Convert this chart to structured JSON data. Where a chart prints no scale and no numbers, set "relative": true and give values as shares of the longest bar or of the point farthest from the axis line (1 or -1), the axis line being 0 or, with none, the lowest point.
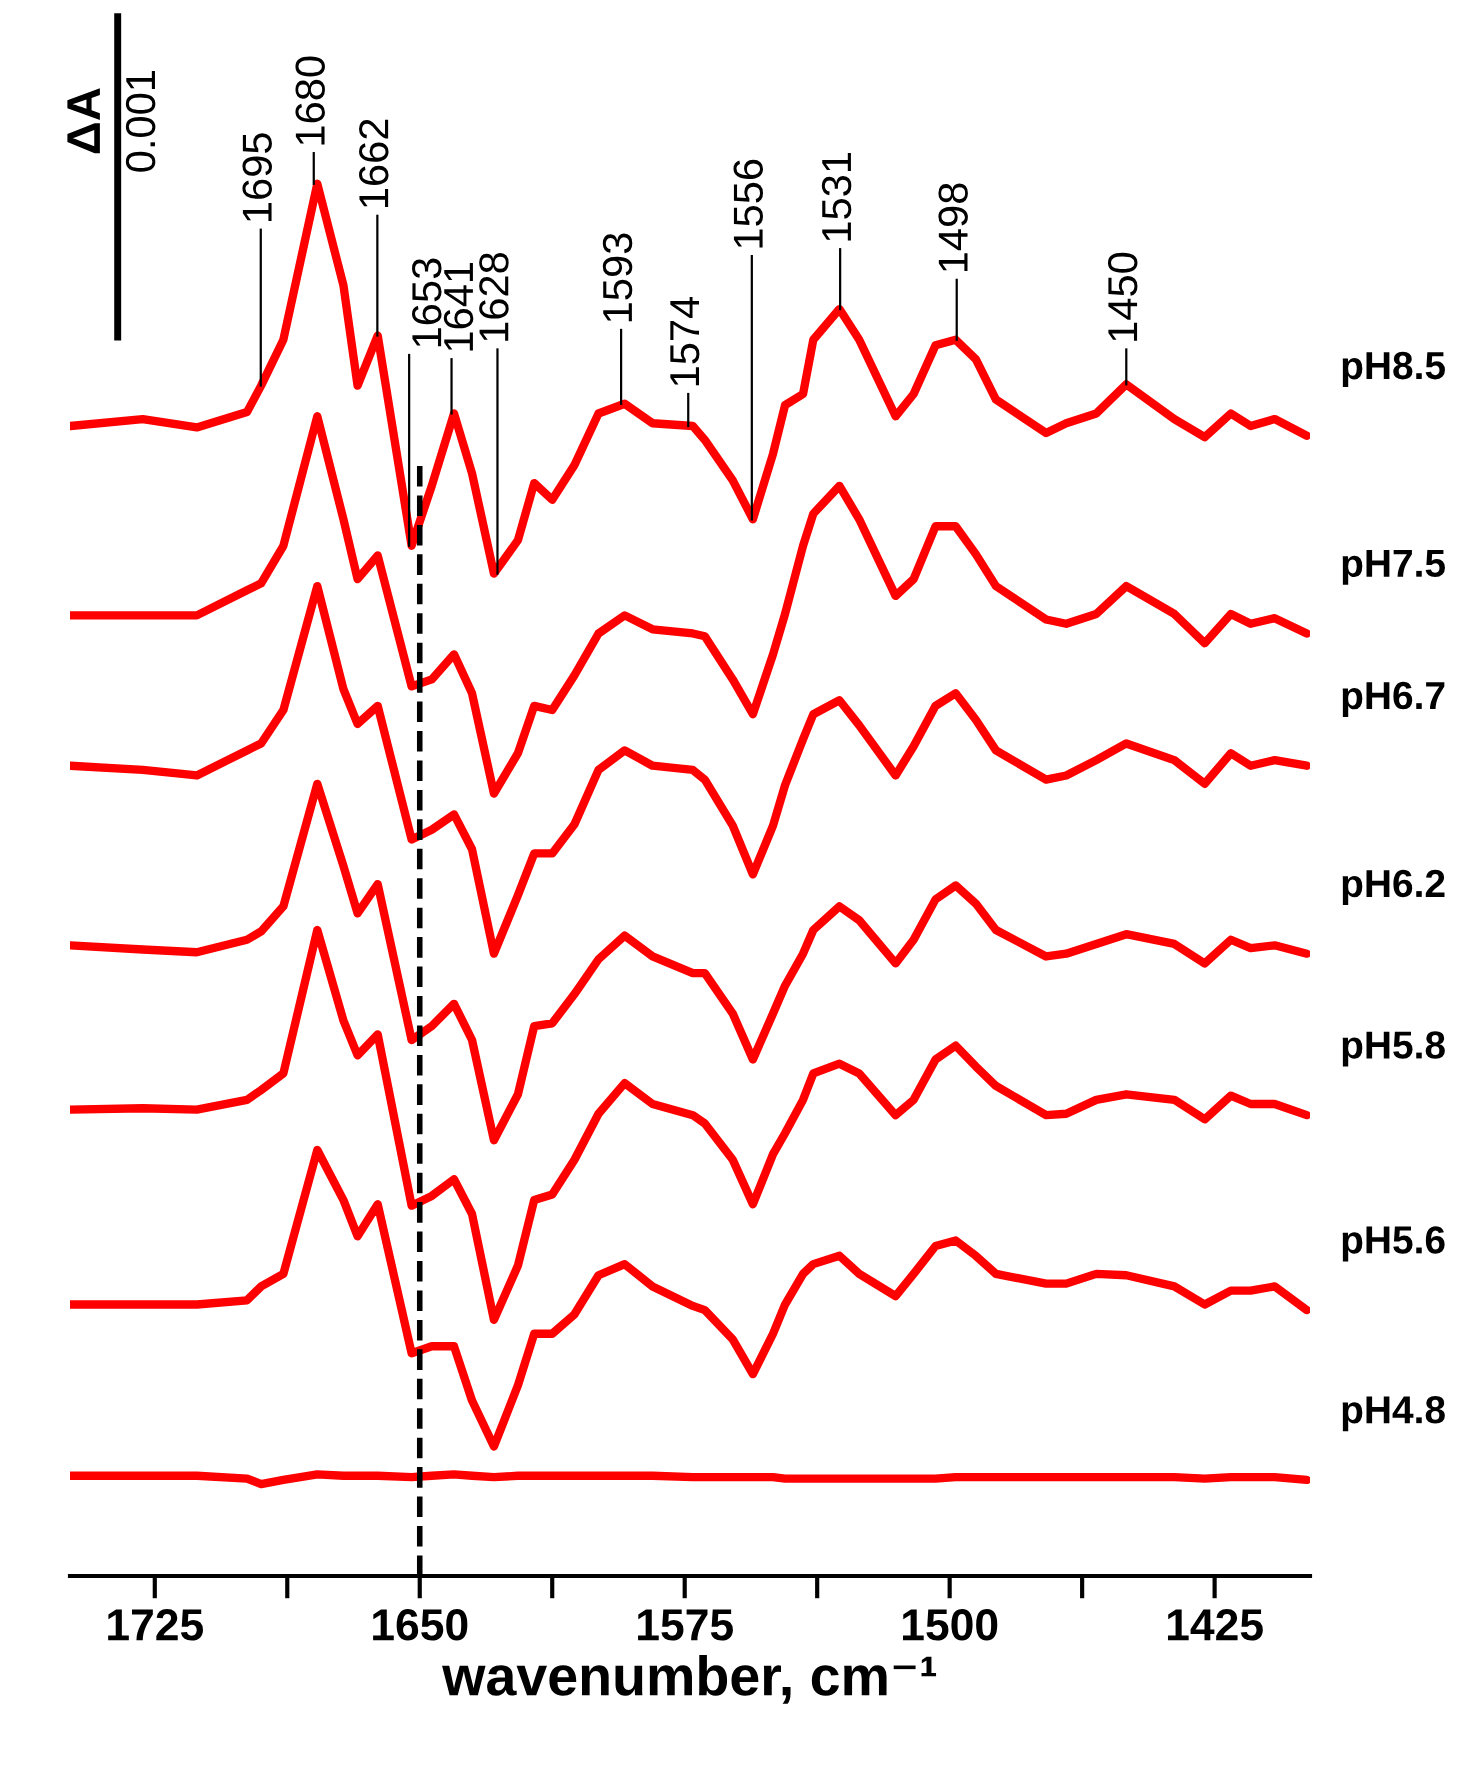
{
  "chart_data": {
    "type": "line",
    "relative": true,
    "xlabel": "wavenumber, cm⁻¹",
    "x": [
      1748.9,
      1728.4,
      1713.1,
      1698.9,
      1694.9,
      1688.6,
      1679.0,
      1671.6,
      1667.6,
      1661.9,
      1652.3,
      1646.6,
      1640.3,
      1635.2,
      1629.0,
      1622.2,
      1617.6,
      1612.5,
      1606.2,
      1599.4,
      1592.0,
      1584.1,
      1572.7,
      1569.3,
      1561.4,
      1555.7,
      1550.0,
      1546.6,
      1541.5,
      1538.6,
      1531.2,
      1525.6,
      1515.3,
      1510.2,
      1504.0,
      1498.3,
      1492.6,
      1486.9,
      1472.7,
      1467.0,
      1458.5,
      1450.0,
      1436.4,
      1427.8,
      1420.4,
      1414.8,
      1408.0,
      1398.9
    ],
    "xlim": [
      1749,
      1398
    ],
    "xticks": [
      1725,
      {
        "value": 1687.5,
        "label": null
      },
      1650,
      {
        "value": 1612.5,
        "label": null
      },
      1575,
      {
        "value": 1537.5,
        "label": null
      },
      1500,
      {
        "value": 1462.5,
        "label": null
      },
      1425
    ],
    "tick_labels": "x",
    "grid": false,
    "line_style": "solid",
    "marker": "none",
    "series": [
      {
        "name": "pH8.5",
        "color": "#ff0000",
        "values": [
          0.826,
          0.831,
          0.825,
          0.836,
          0.855,
          0.888,
          1.0,
          0.927,
          0.855,
          0.891,
          0.74,
          0.783,
          0.835,
          0.792,
          0.72,
          0.744,
          0.785,
          0.773,
          0.798,
          0.835,
          0.842,
          0.828,
          0.826,
          0.816,
          0.787,
          0.759,
          0.806,
          0.841,
          0.849,
          0.888,
          0.91,
          0.888,
          0.833,
          0.849,
          0.884,
          0.888,
          0.874,
          0.845,
          0.821,
          0.828,
          0.835,
          0.856,
          0.831,
          0.818,
          0.835,
          0.826,
          0.831,
          0.819
        ]
      },
      {
        "name": "pH7.5",
        "color": "#ff0000",
        "values": [
          0.69,
          0.69,
          0.69,
          0.708,
          0.713,
          0.74,
          0.833,
          0.759,
          0.716,
          0.733,
          0.639,
          0.644,
          0.662,
          0.634,
          0.562,
          0.591,
          0.625,
          0.622,
          0.647,
          0.677,
          0.69,
          0.68,
          0.677,
          0.675,
          0.644,
          0.619,
          0.662,
          0.691,
          0.74,
          0.763,
          0.783,
          0.759,
          0.704,
          0.716,
          0.754,
          0.754,
          0.734,
          0.711,
          0.687,
          0.684,
          0.691,
          0.711,
          0.691,
          0.67,
          0.691,
          0.684,
          0.688,
          0.677
        ]
      },
      {
        "name": "pH6.7",
        "color": "#ff0000",
        "values": [
          0.582,
          0.579,
          0.575,
          0.593,
          0.598,
          0.622,
          0.711,
          0.637,
          0.612,
          0.625,
          0.529,
          0.536,
          0.547,
          0.522,
          0.447,
          0.489,
          0.519,
          0.519,
          0.54,
          0.579,
          0.593,
          0.582,
          0.579,
          0.572,
          0.539,
          0.504,
          0.539,
          0.568,
          0.601,
          0.619,
          0.629,
          0.611,
          0.575,
          0.596,
          0.625,
          0.634,
          0.615,
          0.593,
          0.572,
          0.575,
          0.586,
          0.598,
          0.586,
          0.569,
          0.591,
          0.582,
          0.586,
          0.582
        ]
      },
      {
        "name": "pH6.2",
        "color": "#ff0000",
        "values": [
          0.453,
          0.45,
          0.448,
          0.457,
          0.463,
          0.481,
          0.569,
          0.51,
          0.476,
          0.497,
          0.385,
          0.395,
          0.411,
          0.385,
          0.313,
          0.346,
          0.395,
          0.397,
          0.418,
          0.443,
          0.46,
          0.445,
          0.433,
          0.433,
          0.404,
          0.371,
          0.404,
          0.424,
          0.447,
          0.464,
          0.481,
          0.471,
          0.44,
          0.457,
          0.486,
          0.496,
          0.483,
          0.464,
          0.445,
          0.447,
          0.454,
          0.461,
          0.454,
          0.44,
          0.457,
          0.451,
          0.453,
          0.447
        ]
      },
      {
        "name": "pH5.8",
        "color": "#ff0000",
        "values": [
          0.335,
          0.336,
          0.335,
          0.342,
          0.349,
          0.361,
          0.464,
          0.399,
          0.374,
          0.389,
          0.266,
          0.273,
          0.285,
          0.26,
          0.184,
          0.223,
          0.27,
          0.274,
          0.299,
          0.332,
          0.354,
          0.339,
          0.331,
          0.325,
          0.299,
          0.267,
          0.303,
          0.318,
          0.342,
          0.361,
          0.368,
          0.361,
          0.331,
          0.342,
          0.371,
          0.381,
          0.366,
          0.352,
          0.331,
          0.332,
          0.342,
          0.346,
          0.342,
          0.328,
          0.345,
          0.339,
          0.339,
          0.331
        ]
      },
      {
        "name": "pH5.6",
        "color": "#ff0000",
        "values": [
          0.195,
          0.195,
          0.195,
          0.198,
          0.208,
          0.217,
          0.306,
          0.27,
          0.244,
          0.267,
          0.16,
          0.165,
          0.165,
          0.126,
          0.093,
          0.137,
          0.174,
          0.174,
          0.188,
          0.216,
          0.224,
          0.208,
          0.194,
          0.191,
          0.17,
          0.145,
          0.174,
          0.195,
          0.217,
          0.224,
          0.23,
          0.217,
          0.201,
          0.217,
          0.237,
          0.241,
          0.23,
          0.217,
          0.21,
          0.21,
          0.217,
          0.216,
          0.208,
          0.195,
          0.205,
          0.205,
          0.208,
          0.191
        ]
      },
      {
        "name": "pH4.8",
        "color": "#ff0000",
        "values": [
          0.072,
          0.072,
          0.072,
          0.07,
          0.066,
          0.069,
          0.073,
          0.072,
          0.072,
          0.072,
          0.071,
          0.072,
          0.073,
          0.072,
          0.071,
          0.072,
          0.072,
          0.072,
          0.072,
          0.072,
          0.072,
          0.072,
          0.071,
          0.071,
          0.071,
          0.071,
          0.071,
          0.07,
          0.07,
          0.07,
          0.07,
          0.07,
          0.07,
          0.07,
          0.07,
          0.071,
          0.071,
          0.071,
          0.071,
          0.071,
          0.071,
          0.071,
          0.071,
          0.07,
          0.071,
          0.071,
          0.071,
          0.069
        ]
      }
    ],
    "ref_lines": [
      {
        "axis": "x",
        "value": 1650,
        "color": "#000000",
        "line_style": "dashed"
      }
    ],
    "annotations": [
      "ΔA",
      "0.001",
      {
        "text": "1695",
        "x": 1695,
        "y": 0.855
      },
      {
        "text": "1680",
        "x": 1680,
        "y": 1.0
      },
      {
        "text": "1662",
        "x": 1662,
        "y": 0.891
      },
      {
        "text": "1653",
        "x": 1653,
        "y": 0.74
      },
      {
        "text": "1641",
        "x": 1641,
        "y": 0.835
      },
      {
        "text": "1628",
        "x": 1628,
        "y": 0.72
      },
      {
        "text": "1593",
        "x": 1593,
        "y": 0.842
      },
      {
        "text": "1574",
        "x": 1574,
        "y": 0.826
      },
      {
        "text": "1556",
        "x": 1556,
        "y": 0.759
      },
      {
        "text": "1531",
        "x": 1531,
        "y": 0.91
      },
      {
        "text": "1498",
        "x": 1498,
        "y": 0.888
      },
      {
        "text": "1450",
        "x": 1450,
        "y": 0.856
      }
    ]
  }
}
